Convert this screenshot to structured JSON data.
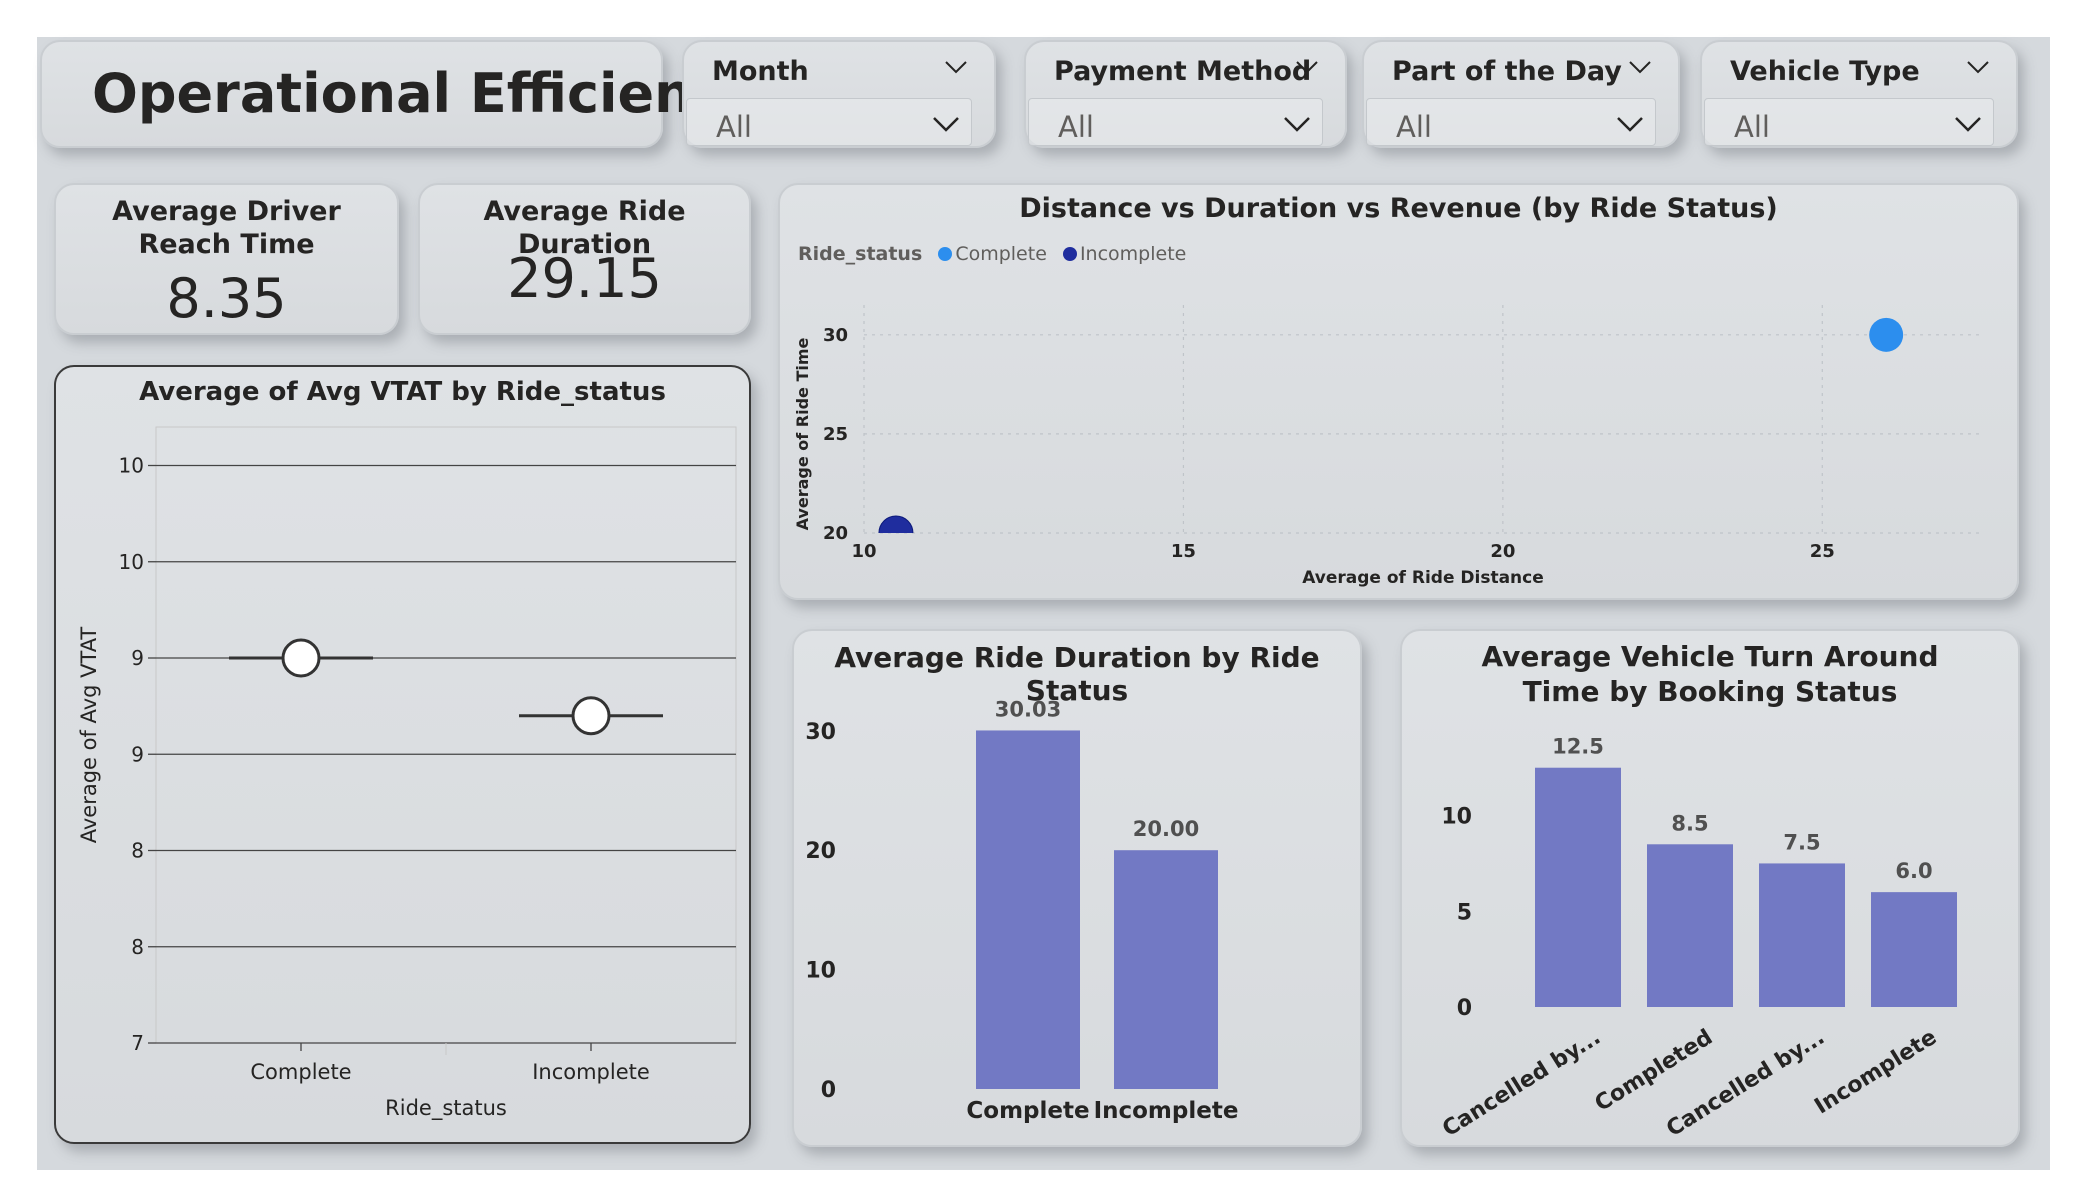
{
  "page_title": "Operational Efficiency",
  "slicers": [
    {
      "label": "Month",
      "value": "All"
    },
    {
      "label": "Payment Method",
      "value": "All"
    },
    {
      "label": "Part of the Day",
      "value": "All"
    },
    {
      "label": "Vehicle Type",
      "value": "All"
    }
  ],
  "kpis": {
    "driver_reach": {
      "label": "Average Driver Reach Time",
      "value": "8.35"
    },
    "ride_duration": {
      "label": "Average Ride Duration",
      "value": "29.15"
    }
  },
  "colors": {
    "bar": "#7279c4",
    "complete": "#2c8eee",
    "incomplete": "#1f2d9e"
  },
  "chart_data": [
    {
      "id": "vtat",
      "type": "scatter",
      "title": "Average of Avg VTAT by Ride_status",
      "xlabel": "Ride_status",
      "ylabel": "Average of Avg VTAT",
      "categories": [
        "Complete",
        "Incomplete"
      ],
      "values": [
        9.0,
        8.7
      ],
      "ylim": [
        7.0,
        10.2
      ],
      "ytick_values": [
        7.0,
        7.5,
        8.0,
        8.5,
        9.0,
        9.5,
        10.0
      ],
      "ytick_labels": [
        "7",
        "8",
        "8",
        "9",
        "9",
        "10",
        "10"
      ],
      "grid": true
    },
    {
      "id": "scatter",
      "type": "scatter",
      "title": "Distance vs Duration vs Revenue (by Ride Status)",
      "xlabel": "Average of Ride Distance",
      "ylabel": "Average of Ride Time",
      "legend_title": "Ride_status",
      "xlim": [
        10,
        27.5
      ],
      "ylim": [
        20,
        31
      ],
      "xticks": [
        10,
        15,
        20,
        25
      ],
      "yticks": [
        20,
        25,
        30
      ],
      "series": [
        {
          "name": "Complete",
          "x": [
            26.0
          ],
          "y": [
            30.0
          ]
        },
        {
          "name": "Incomplete",
          "x": [
            10.5
          ],
          "y": [
            20.0
          ]
        }
      ],
      "legend": "top-left",
      "grid": true
    },
    {
      "id": "duration",
      "type": "bar",
      "title": "Average Ride Duration by Ride Status",
      "categories": [
        "Complete",
        "Incomplete"
      ],
      "values": [
        30.03,
        20.0
      ],
      "data_labels": [
        "30.03",
        "20.00"
      ],
      "ylim": [
        0,
        33
      ],
      "yticks": [
        0,
        10,
        20,
        30
      ]
    },
    {
      "id": "vtat_booking",
      "type": "bar",
      "title": "Average Vehicle Turn Around Time by Booking Status",
      "categories": [
        "Cancelled by...",
        "Completed",
        "Cancelled by...",
        "Incomplete"
      ],
      "values": [
        12.5,
        8.5,
        7.5,
        6.0
      ],
      "data_labels": [
        "12.5",
        "8.5",
        "7.5",
        "6.0"
      ],
      "ylim": [
        0,
        14
      ],
      "yticks": [
        0,
        5,
        10
      ]
    }
  ]
}
